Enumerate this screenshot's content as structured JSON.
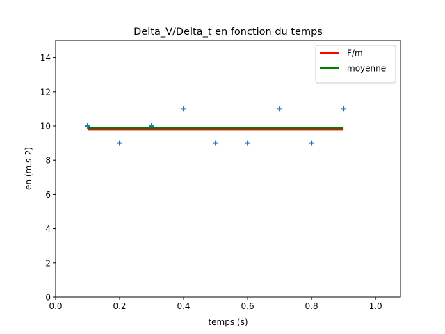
{
  "chart_data": {
    "type": "scatter",
    "title": "Delta_V/Delta_t en fonction du temps",
    "xlabel": "temps (s)",
    "ylabel": "en (m.s-2)",
    "xlim": [
      0.0,
      1.078
    ],
    "ylim": [
      0,
      15
    ],
    "xticks": [
      0.0,
      0.2,
      0.4,
      0.6,
      0.8,
      1.0
    ],
    "xtick_labels": [
      "0.0",
      "0.2",
      "0.4",
      "0.6",
      "0.8",
      "1.0"
    ],
    "yticks": [
      0,
      2,
      4,
      6,
      8,
      10,
      12,
      14
    ],
    "ytick_labels": [
      "0",
      "2",
      "4",
      "6",
      "8",
      "10",
      "12",
      "14"
    ],
    "grid": false,
    "legend_position": "upper right",
    "series": [
      {
        "name": "Delta_V/Delta_t",
        "type": "scatter",
        "marker": "+",
        "color": "#1f77b4",
        "in_legend": false,
        "x": [
          0.1,
          0.2,
          0.3,
          0.4,
          0.5,
          0.6,
          0.7,
          0.8,
          0.9
        ],
        "y": [
          10,
          9,
          10,
          11,
          9,
          9,
          11,
          9,
          11
        ]
      },
      {
        "name": "F/m",
        "type": "line",
        "color": "#ff0000",
        "in_legend": true,
        "x": [
          0.1,
          0.9
        ],
        "y": [
          9.8,
          9.8
        ]
      },
      {
        "name": "moyenne",
        "type": "line",
        "color": "#008000",
        "in_legend": true,
        "x": [
          0.1,
          0.9
        ],
        "y": [
          9.89,
          9.89
        ]
      }
    ]
  }
}
